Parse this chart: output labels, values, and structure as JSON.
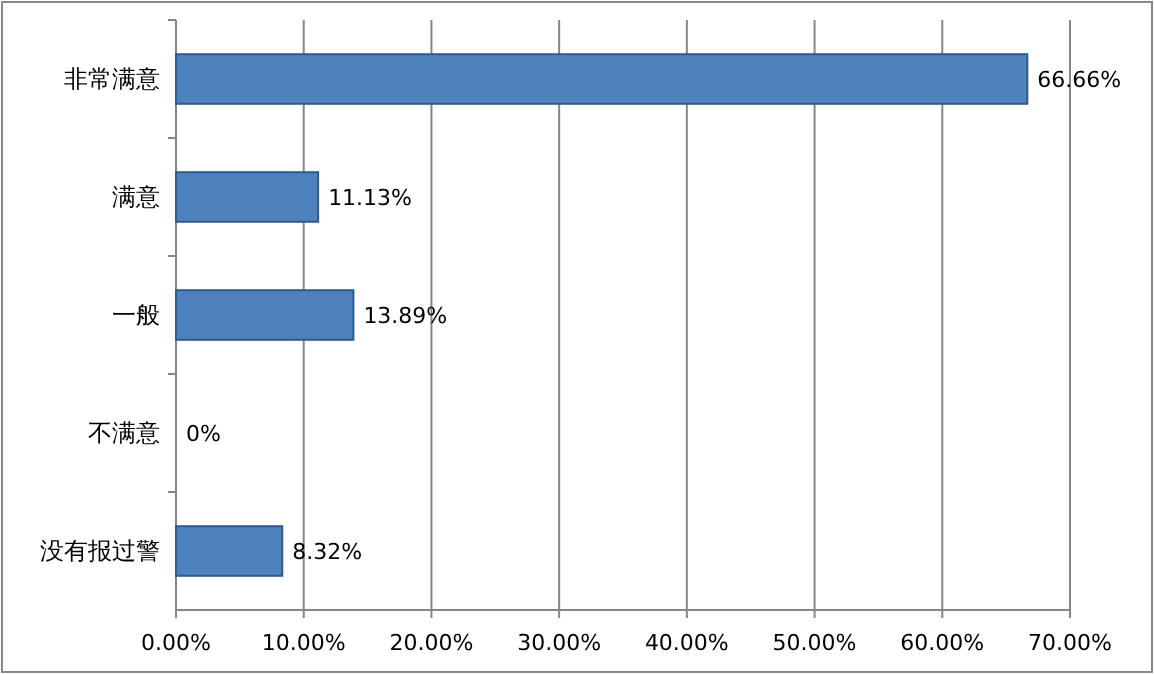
{
  "chart_data": {
    "type": "bar",
    "orientation": "horizontal",
    "categories": [
      "非常满意",
      "满意",
      "一般",
      "不满意",
      "没有报过警"
    ],
    "values": [
      66.66,
      11.13,
      13.89,
      0,
      8.32
    ],
    "value_labels": [
      "66.66%",
      "11.13%",
      "13.89%",
      "0%",
      "8.32%"
    ],
    "color": "#4f81bd",
    "xlim": [
      0,
      70
    ],
    "xticks": [
      {
        "value": 0,
        "label": "0.00%"
      },
      {
        "value": 10,
        "label": "10.00%"
      },
      {
        "value": 20,
        "label": "20.00%"
      },
      {
        "value": 30,
        "label": "30.00%"
      },
      {
        "value": 40,
        "label": "40.00%"
      },
      {
        "value": 50,
        "label": "50.00%"
      },
      {
        "value": 60,
        "label": "60.00%"
      },
      {
        "value": 70,
        "label": "70.00%"
      }
    ],
    "grid": "x"
  }
}
